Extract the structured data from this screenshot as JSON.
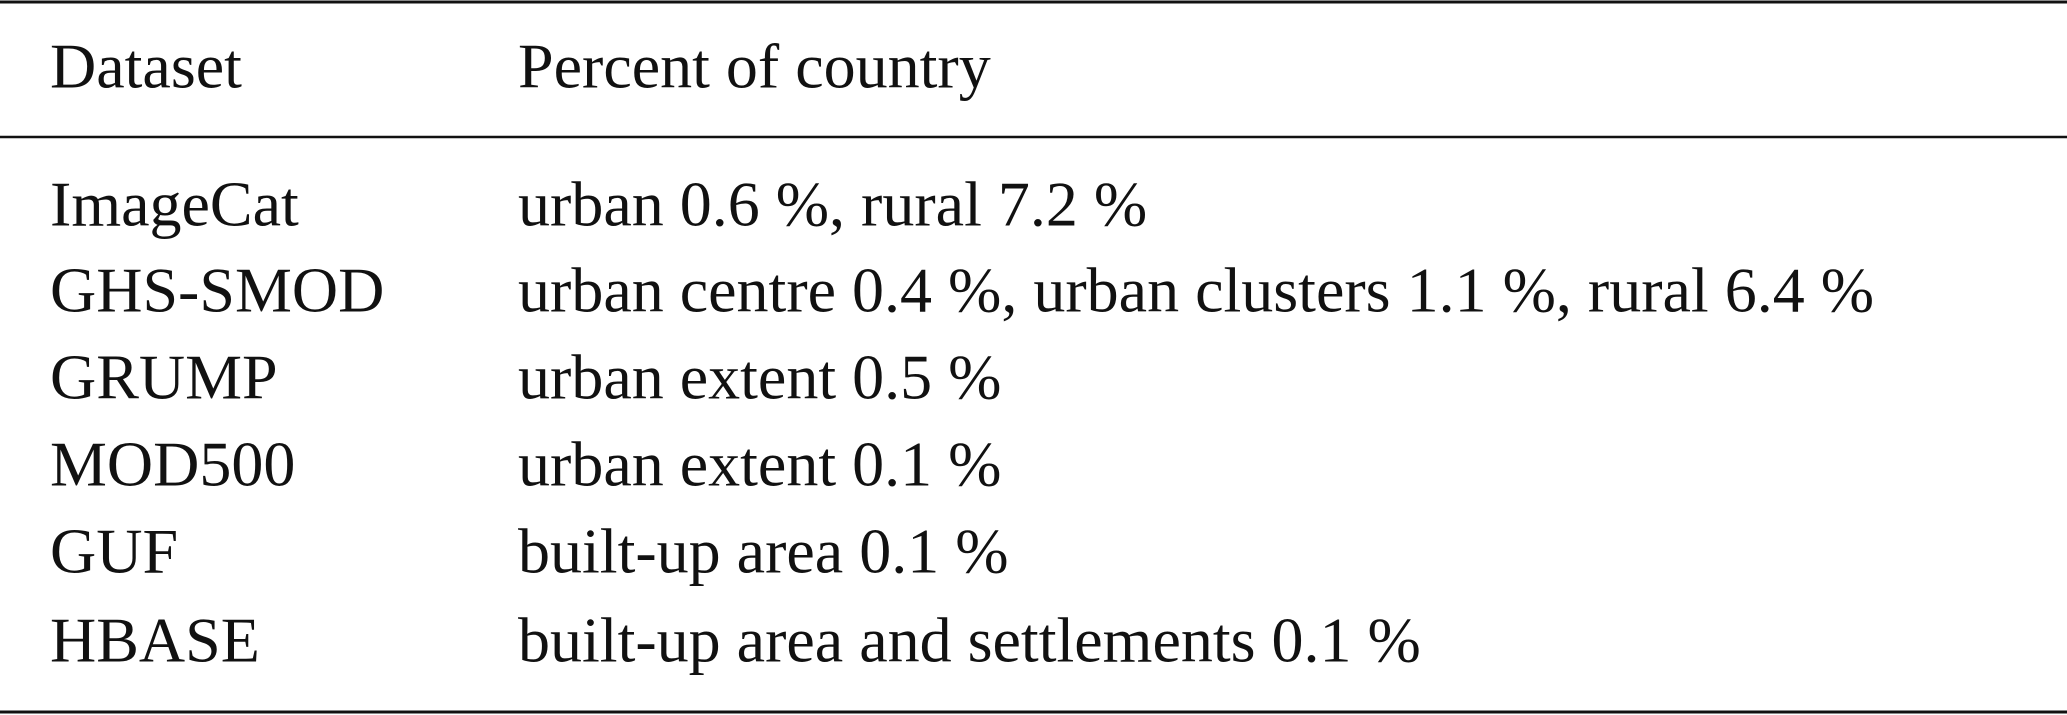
{
  "table": {
    "header": [
      "Dataset",
      "Percent of country"
    ],
    "rows": [
      [
        "ImageCat",
        "urban 0.6 %, rural 7.2 %"
      ],
      [
        "GHS-SMOD",
        "urban centre 0.4 %, urban clusters 1.1 %, rural 6.4 %"
      ],
      [
        "GRUMP",
        "urban extent 0.5 %"
      ],
      [
        "MOD500",
        "urban extent 0.1 %"
      ],
      [
        "GUF",
        "built-up area 0.1 %"
      ],
      [
        "HBASE",
        "built-up area and settlements 0.1 %"
      ]
    ]
  }
}
